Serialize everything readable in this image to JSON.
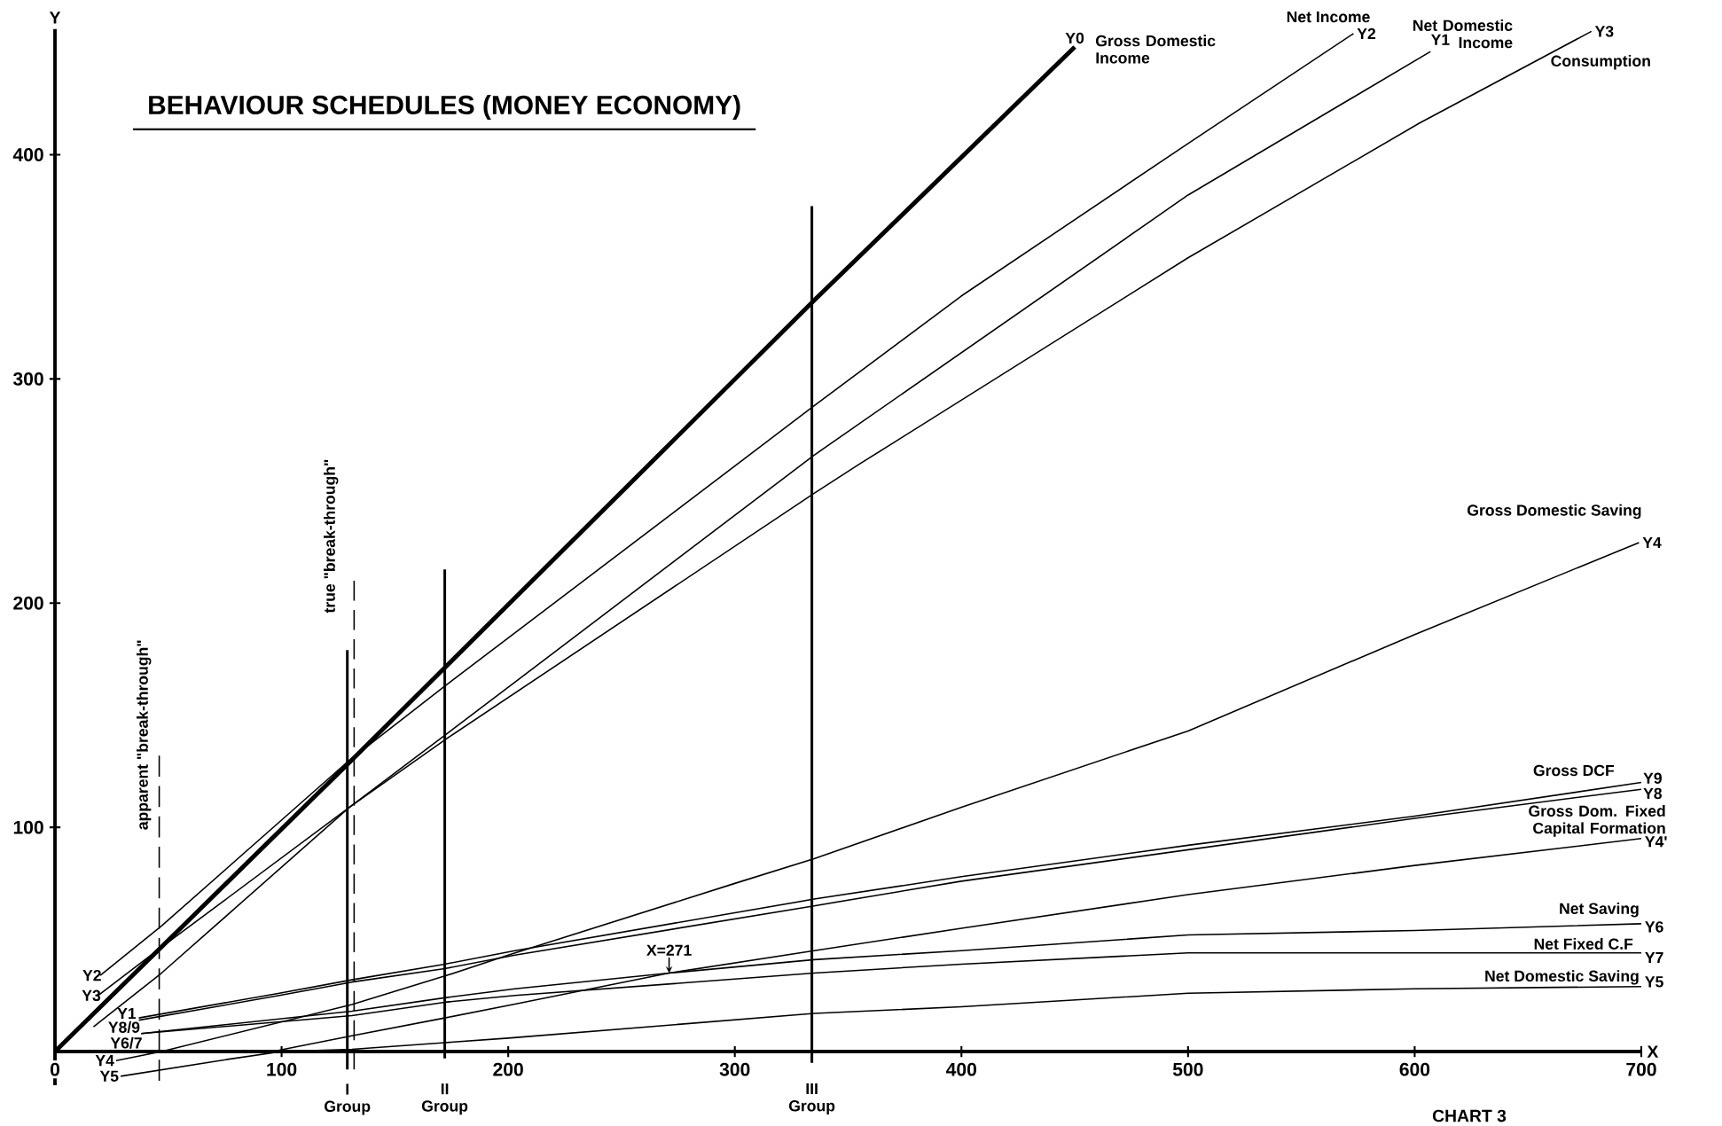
{
  "chart_data": {
    "type": "line",
    "title": "BEHAVIOUR SCHEDULES (MONEY ECONOMY)",
    "xlabel": "X",
    "ylabel": "Y",
    "xlim": [
      0,
      700
    ],
    "ylim": [
      -15,
      456
    ],
    "xticks": [
      0,
      100,
      200,
      300,
      400,
      500,
      600,
      700
    ],
    "yticks": [
      100,
      200,
      300,
      400
    ],
    "series": [
      {
        "name": "Gross Domestic Income",
        "color": "#000000",
        "x": [
          0,
          130,
          335,
          450
        ],
        "values": [
          0,
          129,
          335,
          448
        ]
      },
      {
        "name": "Net Income",
        "color": "#000000",
        "x": [
          20,
          47,
          130,
          172,
          335,
          400,
          500,
          573
        ],
        "values": [
          34,
          56,
          130,
          163,
          288,
          337,
          405,
          454
        ]
      },
      {
        "name": "Net Domestic Income",
        "color": "#000000",
        "x": [
          17,
          47,
          130,
          172,
          335,
          500,
          607
        ],
        "values": [
          11,
          35,
          109,
          141,
          266,
          382,
          446
        ]
      },
      {
        "name": "Consumption",
        "color": "#000000",
        "x": [
          19,
          45,
          130,
          172,
          335,
          355,
          500,
          602,
          678
        ],
        "values": [
          25,
          45,
          109,
          139,
          249,
          262,
          354,
          414,
          455
        ]
      },
      {
        "name": "Gross Domestic Saving",
        "color": "#000000",
        "x": [
          27,
          47,
          131,
          173,
          200,
          300,
          335,
          400,
          500,
          600,
          699
        ],
        "values": [
          -4,
          0,
          21,
          34,
          43,
          75,
          86,
          109,
          143,
          186,
          227
        ]
      },
      {
        "name": "Gross DCF",
        "color": "#000000",
        "x": [
          37,
          99,
          131,
          172,
          203,
          335,
          400,
          500,
          600,
          700
        ],
        "values": [
          15,
          26,
          32,
          39,
          45,
          68,
          78,
          92,
          105,
          120
        ]
      },
      {
        "name": "Gross Dom. Fixed Capital Formation",
        "color": "#000000",
        "x": [
          37,
          99,
          131,
          172,
          203,
          335,
          400,
          500,
          600,
          700
        ],
        "values": [
          14,
          25,
          31,
          37,
          43,
          65,
          76,
          90,
          104,
          117
        ]
      },
      {
        "color": "#000000",
        "x": [
          96,
          131,
          172,
          202,
          271,
          335,
          400,
          500,
          600,
          700
        ],
        "values": [
          0,
          7,
          15,
          21,
          35,
          45,
          55,
          70,
          83,
          95
        ]
      },
      {
        "name": "Net Saving",
        "color": "#000000",
        "x": [
          38,
          131,
          172,
          203,
          271,
          335,
          400,
          500,
          600,
          700
        ],
        "values": [
          8,
          18,
          24,
          28,
          35,
          41,
          45,
          52,
          54,
          57
        ]
      },
      {
        "name": "Net Fixed C.F",
        "color": "#000000",
        "x": [
          38,
          131,
          172,
          203,
          335,
          400,
          500,
          600,
          700
        ],
        "values": [
          8,
          16,
          22,
          25,
          35,
          39,
          44,
          44,
          44
        ]
      },
      {
        "name": "Net Domestic Saving",
        "color": "#000000",
        "x": [
          29,
          76,
          100,
          131,
          172,
          200,
          335,
          400,
          500,
          600,
          700
        ],
        "values": [
          -11,
          -3.5,
          0,
          1,
          4,
          6,
          17,
          20,
          26,
          28,
          29
        ]
      },
      {
        "name": "apparent \"break-through\"",
        "color": "#000000",
        "line_style": "dashed",
        "x": [
          46,
          46
        ],
        "values": [
          -13,
          132
        ]
      },
      {
        "name": "true \"break-through\"",
        "color": "#000000",
        "line_style": "dashed",
        "x": [
          132,
          132
        ],
        "values": [
          -8,
          210
        ]
      },
      {
        "name": "I Group",
        "color": "#000000",
        "x": [
          129,
          129
        ],
        "values": [
          -8,
          179
        ]
      },
      {
        "name": "II Group",
        "color": "#000000",
        "x": [
          172,
          172
        ],
        "values": [
          -3,
          215
        ]
      },
      {
        "name": "III Group",
        "color": "#000000",
        "x": [
          334,
          334
        ],
        "values": [
          -5,
          377
        ]
      }
    ],
    "annotations": [
      {
        "text": "Y0",
        "x": 450,
        "y": 448
      },
      {
        "text": "Y2",
        "x": 573,
        "y": 454
      },
      {
        "text": "Y1",
        "x": 607,
        "y": 446
      },
      {
        "text": "Y3",
        "x": 678,
        "y": 455
      },
      {
        "text": "Y4",
        "x": 699,
        "y": 227
      },
      {
        "text": "Y9",
        "x": 700,
        "y": 120
      },
      {
        "text": "Y8",
        "x": 700,
        "y": 117
      },
      {
        "text": "Y4'",
        "x": 700,
        "y": 95
      },
      {
        "text": "Y6",
        "x": 700,
        "y": 57
      },
      {
        "text": "Y7",
        "x": 700,
        "y": 44
      },
      {
        "text": "Y5",
        "x": 700,
        "y": 29
      },
      {
        "text": "Y2",
        "x": 20,
        "y": 34
      },
      {
        "text": "Y3",
        "x": 19,
        "y": 25
      },
      {
        "text": "Y1",
        "x": 17,
        "y": 11
      },
      {
        "text": "Y8/9",
        "x": 37,
        "y": 15
      },
      {
        "text": "Y6/7",
        "x": 38,
        "y": 8
      },
      {
        "text": "Y4",
        "x": 27,
        "y": -4
      },
      {
        "text": "Y5",
        "x": 29,
        "y": -11
      },
      {
        "text": "X=271",
        "x": 271,
        "y": 35
      },
      "CHART 3"
    ]
  }
}
